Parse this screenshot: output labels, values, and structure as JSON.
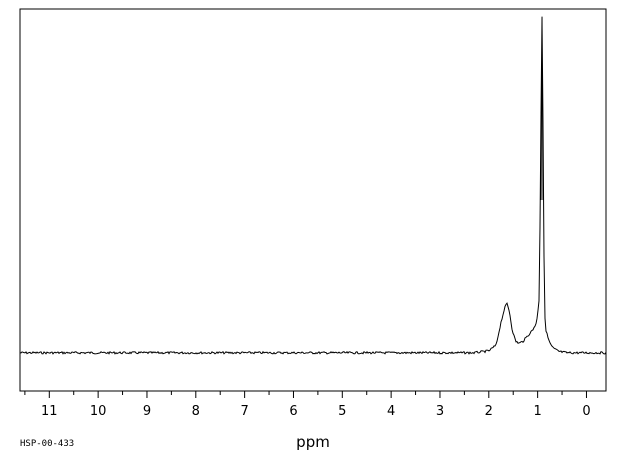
{
  "spectrum_id": "HSP-00-433",
  "chart_data": {
    "type": "line",
    "xlabel": "ppm",
    "title": "",
    "ylabel": "",
    "x_reversed": true,
    "xlim": [
      11.6,
      -0.4
    ],
    "ylim": [
      0,
      1
    ],
    "x_ticks": [
      11,
      10,
      9,
      8,
      7,
      6,
      5,
      4,
      3,
      2,
      1,
      0
    ],
    "x_tick_labels": [
      "11",
      "10",
      "9",
      "8",
      "7",
      "6",
      "5",
      "4",
      "3",
      "2",
      "1",
      "0"
    ],
    "x_minor_step": 0.5,
    "grid": false,
    "baseline": 0.1,
    "peaks": [
      {
        "ppm": 1.63,
        "height": 0.23
      },
      {
        "ppm": 0.91,
        "height": 0.98
      }
    ],
    "series": [
      {
        "x": [
          11.6,
          3.0,
          2.3,
          2.0,
          1.85,
          1.75,
          1.68,
          1.63,
          1.58,
          1.52,
          1.45,
          1.38,
          1.3,
          1.2,
          1.1,
          1.02,
          0.97,
          0.94,
          0.92,
          0.91,
          0.9,
          0.88,
          0.86,
          0.83,
          0.79,
          0.73,
          0.66,
          0.55,
          0.4,
          -0.4
        ],
        "y": [
          0.1,
          0.1,
          0.1,
          0.105,
          0.12,
          0.18,
          0.215,
          0.23,
          0.21,
          0.16,
          0.13,
          0.125,
          0.13,
          0.145,
          0.16,
          0.18,
          0.24,
          0.55,
          0.95,
          0.98,
          0.9,
          0.5,
          0.21,
          0.16,
          0.14,
          0.12,
          0.11,
          0.103,
          0.1,
          0.1
        ]
      }
    ]
  }
}
